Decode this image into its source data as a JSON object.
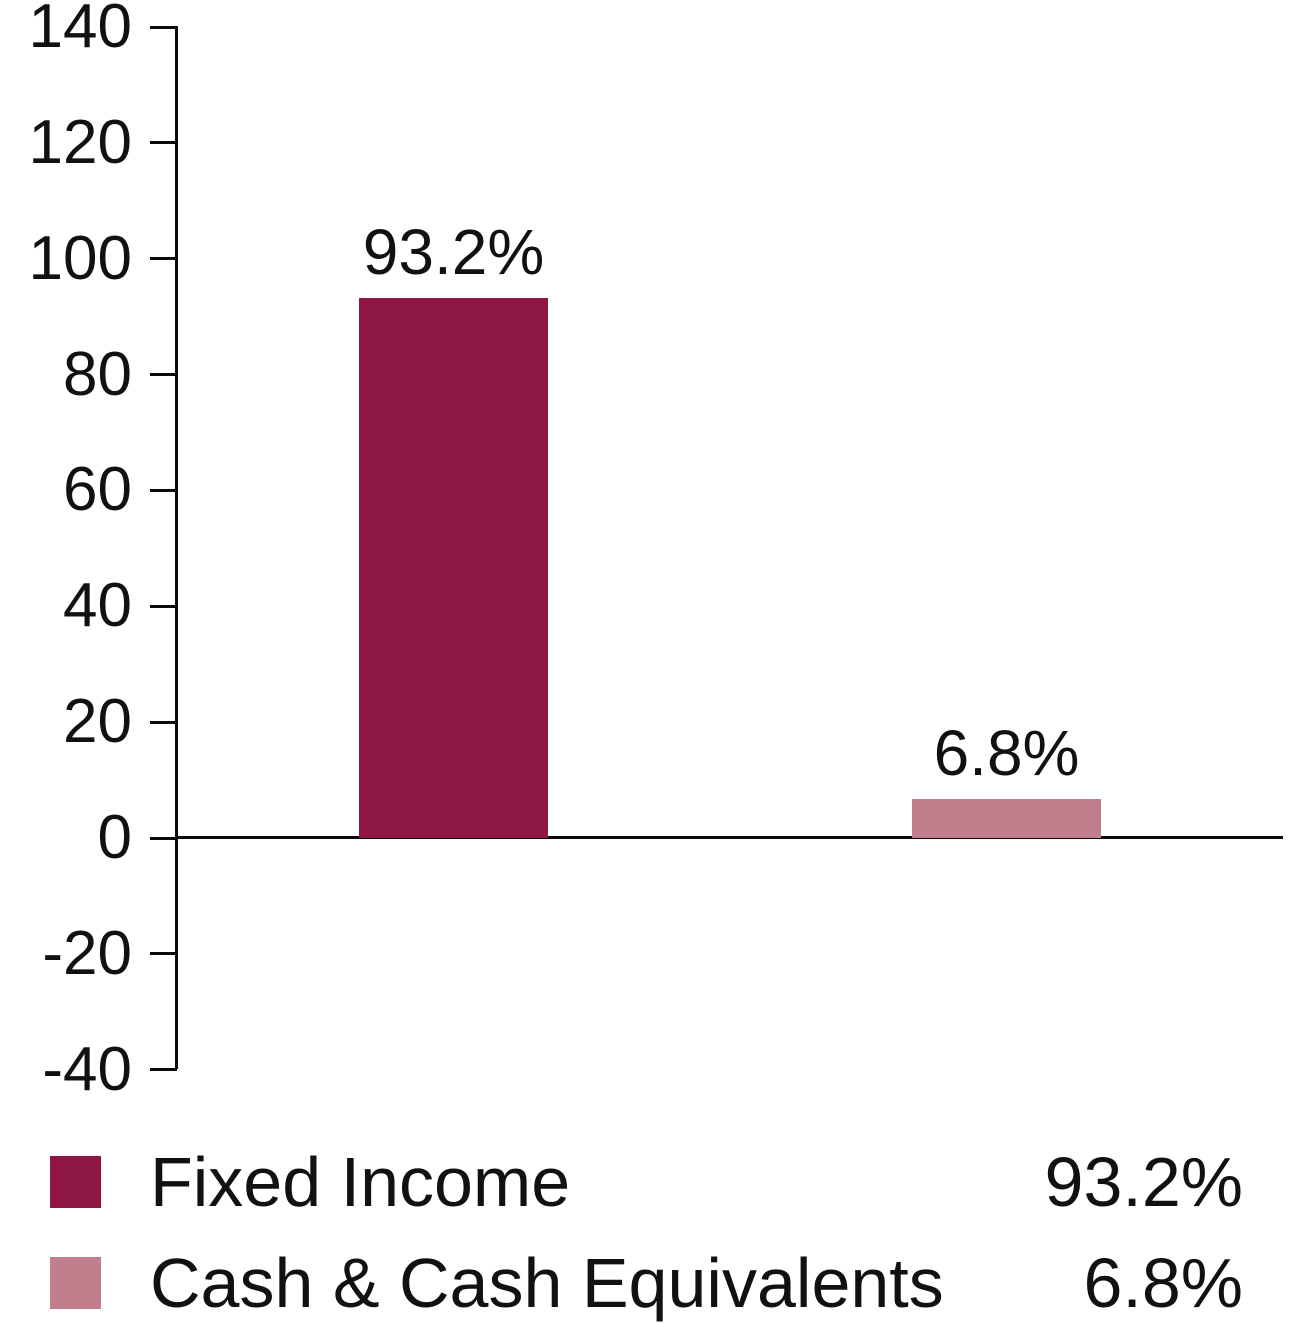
{
  "colors": {
    "fixed_income": "#8E1745",
    "cash_equivalents": "#C17E8C",
    "axis": "#0a0a0a",
    "text": "#111111",
    "background": "#ffffff"
  },
  "chart_data": {
    "type": "bar",
    "title": "",
    "xlabel": "",
    "ylabel": "",
    "categories": [
      "Fixed Income",
      "Cash & Cash Equivalents"
    ],
    "values": [
      93.2,
      6.8
    ],
    "bar_labels": [
      "93.2%",
      "6.8%"
    ],
    "bar_colors": [
      "#8E1745",
      "#C17E8C"
    ],
    "ylim": [
      -40,
      140
    ],
    "ytick_step": 20,
    "yticks": [
      140,
      120,
      100,
      80,
      60,
      40,
      20,
      0,
      -20,
      -40
    ],
    "grid": false,
    "legend_position": "bottom",
    "legend": [
      {
        "label": "Fixed Income",
        "value": "93.2%",
        "color": "#8E1745"
      },
      {
        "label": "Cash & Cash Equivalents",
        "value": "6.8%",
        "color": "#C17E8C"
      }
    ]
  }
}
